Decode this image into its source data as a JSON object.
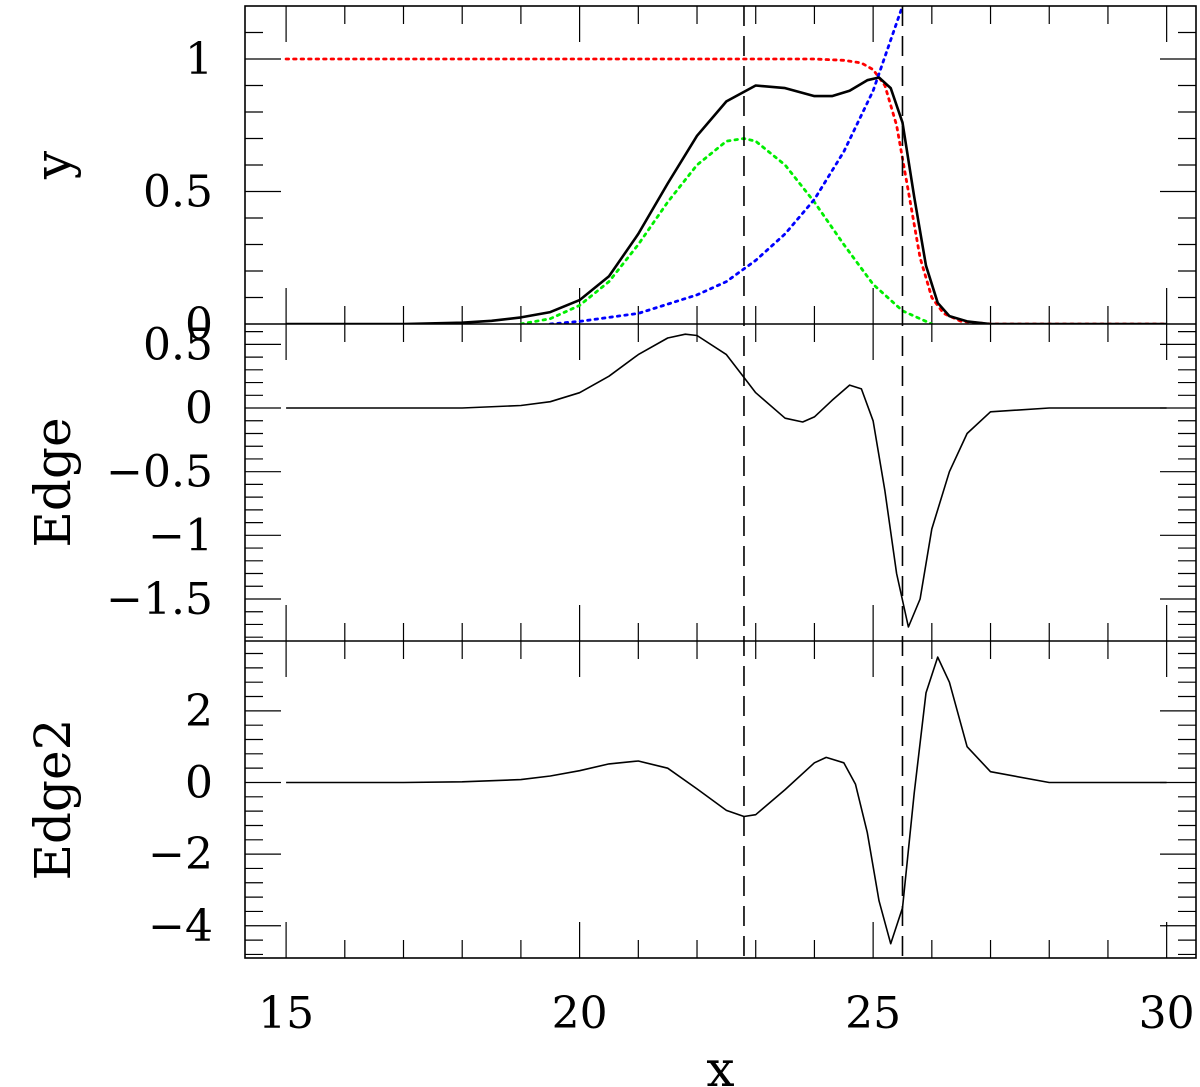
{
  "colors": {
    "total": "#000000",
    "step": "#ff0000",
    "gauss": "#00ee00",
    "expo": "#0000ff",
    "axes": "#000000"
  },
  "chart_data": [
    {
      "type": "line",
      "panel": "top",
      "xlabel": "",
      "ylabel": "y",
      "xlim": [
        14.3,
        30.5
      ],
      "ylim": [
        0,
        1.2
      ],
      "yticks": [
        0,
        0.5,
        1
      ],
      "ytick_labels": [
        "0",
        "0.5",
        "1"
      ],
      "vlines": [
        22.8,
        25.5
      ],
      "series": [
        {
          "key": "step",
          "style": "dotted",
          "color": "#ff0000",
          "x": [
            15,
            16,
            17,
            18,
            19,
            20,
            21,
            22,
            23,
            24,
            24.5,
            24.8,
            25.0,
            25.2,
            25.4,
            25.6,
            25.8,
            26.0,
            26.2,
            26.5,
            27,
            28,
            29,
            30
          ],
          "y": [
            1,
            1,
            1,
            1,
            1,
            1,
            1,
            1,
            1,
            1,
            0.995,
            0.985,
            0.96,
            0.9,
            0.75,
            0.5,
            0.25,
            0.1,
            0.04,
            0.01,
            0,
            0,
            0,
            0
          ]
        },
        {
          "key": "gauss",
          "style": "dotted",
          "color": "#00ee00",
          "x": [
            19.0,
            19.5,
            20.0,
            20.5,
            21.0,
            21.5,
            22.0,
            22.5,
            22.8,
            23.0,
            23.5,
            24.0,
            24.5,
            25.0,
            25.5,
            26.0
          ],
          "y": [
            0,
            0.02,
            0.07,
            0.16,
            0.3,
            0.46,
            0.6,
            0.69,
            0.7,
            0.69,
            0.6,
            0.46,
            0.3,
            0.15,
            0.05,
            0
          ]
        },
        {
          "key": "expo",
          "style": "dotted",
          "color": "#0000ff",
          "x": [
            19.5,
            20,
            21,
            22,
            22.5,
            23,
            23.5,
            24,
            24.5,
            25,
            25.5,
            26
          ],
          "y": [
            0,
            0.01,
            0.04,
            0.11,
            0.16,
            0.24,
            0.34,
            0.47,
            0.65,
            0.88,
            1.2,
            1.5
          ]
        },
        {
          "key": "total",
          "style": "solid",
          "color": "#000000",
          "x": [
            15,
            16,
            17,
            18,
            18.5,
            19,
            19.5,
            20,
            20.5,
            21,
            21.5,
            22,
            22.5,
            23,
            23.5,
            24,
            24.3,
            24.6,
            24.9,
            25.1,
            25.3,
            25.5,
            25.7,
            25.9,
            26.1,
            26.3,
            26.6,
            27,
            28,
            29,
            30
          ],
          "y": [
            0,
            0,
            0,
            0.005,
            0.012,
            0.025,
            0.045,
            0.09,
            0.18,
            0.34,
            0.53,
            0.71,
            0.84,
            0.9,
            0.89,
            0.86,
            0.86,
            0.88,
            0.92,
            0.93,
            0.89,
            0.76,
            0.48,
            0.22,
            0.08,
            0.03,
            0.01,
            0,
            0,
            0,
            0
          ]
        }
      ]
    },
    {
      "type": "line",
      "panel": "middle",
      "xlabel": "",
      "ylabel": "Edge",
      "xlim": [
        14.3,
        30.5
      ],
      "ylim": [
        -1.83,
        0.66
      ],
      "yticks": [
        -1.5,
        -1,
        -0.5,
        0,
        0.5
      ],
      "ytick_labels": [
        "−1.5",
        "−1",
        "−0.5",
        "0",
        "0.5"
      ],
      "vlines": [
        22.8,
        25.5
      ],
      "series": [
        {
          "key": "edge",
          "style": "solid",
          "color": "#000000",
          "x": [
            15,
            16,
            17,
            18,
            19,
            19.5,
            20,
            20.5,
            21,
            21.5,
            21.8,
            22,
            22.5,
            23,
            23.5,
            23.8,
            24,
            24.3,
            24.6,
            24.8,
            25.0,
            25.2,
            25.4,
            25.6,
            25.8,
            26.0,
            26.3,
            26.6,
            27,
            28,
            29,
            30
          ],
          "y": [
            0,
            0,
            0,
            0,
            0.02,
            0.05,
            0.12,
            0.25,
            0.42,
            0.55,
            0.58,
            0.57,
            0.42,
            0.12,
            -0.08,
            -0.11,
            -0.07,
            0.06,
            0.18,
            0.15,
            -0.1,
            -0.65,
            -1.3,
            -1.72,
            -1.5,
            -0.95,
            -0.5,
            -0.2,
            -0.03,
            0,
            0,
            0
          ]
        }
      ]
    },
    {
      "type": "line",
      "panel": "bottom",
      "xlabel": "x",
      "ylabel": "Edge2",
      "xlim": [
        14.3,
        30.5
      ],
      "ylim": [
        -4.9,
        3.95
      ],
      "yticks": [
        -4,
        -2,
        0,
        2
      ],
      "ytick_labels": [
        "−4",
        "−2",
        "0",
        "2"
      ],
      "xticks": [
        15,
        20,
        25,
        30
      ],
      "xtick_labels": [
        "15",
        "20",
        "25",
        "30"
      ],
      "vlines": [
        22.8,
        25.5
      ],
      "series": [
        {
          "key": "edge2",
          "style": "solid",
          "color": "#000000",
          "x": [
            15,
            16,
            17,
            18,
            19,
            19.5,
            20,
            20.5,
            21,
            21.5,
            22,
            22.5,
            22.8,
            23,
            23.5,
            24,
            24.2,
            24.5,
            24.7,
            24.9,
            25.1,
            25.3,
            25.5,
            25.7,
            25.9,
            26.1,
            26.3,
            26.6,
            27,
            28,
            29,
            30
          ],
          "y": [
            0,
            0,
            0,
            0.02,
            0.08,
            0.18,
            0.33,
            0.52,
            0.6,
            0.4,
            -0.18,
            -0.78,
            -0.95,
            -0.9,
            -0.2,
            0.55,
            0.7,
            0.55,
            -0.05,
            -1.4,
            -3.3,
            -4.5,
            -3.5,
            -0.3,
            2.5,
            3.5,
            2.8,
            1.0,
            0.3,
            0,
            0,
            0
          ]
        }
      ]
    }
  ]
}
